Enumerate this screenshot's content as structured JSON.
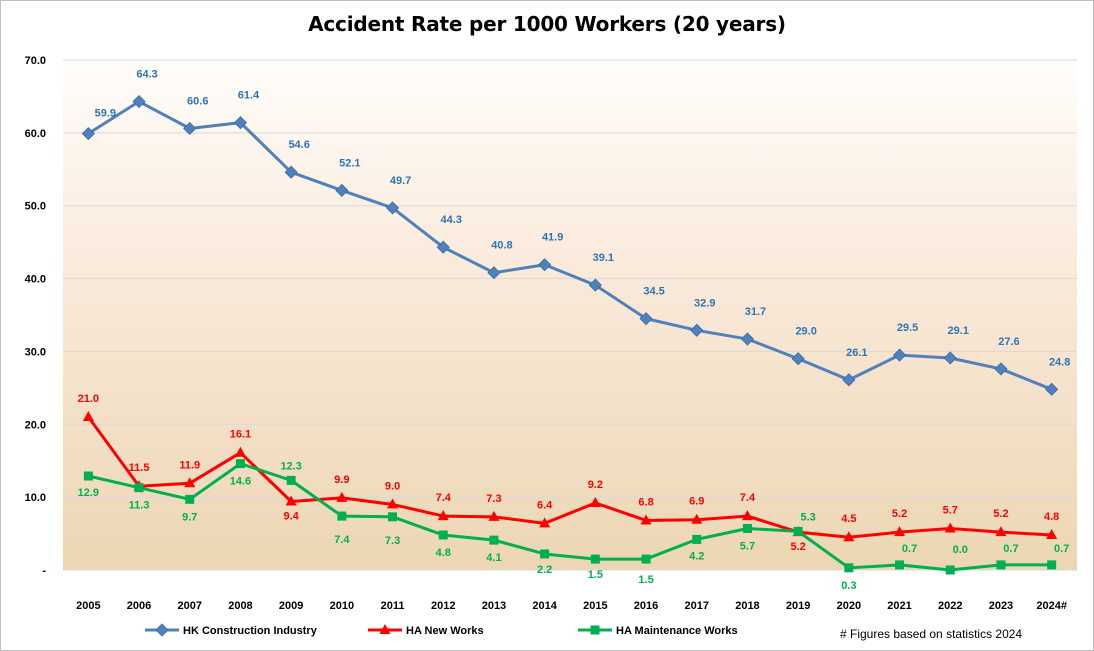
{
  "chart_data": {
    "type": "line",
    "title": "Accident Rate per 1000 Workers (20 years)",
    "categories": [
      "2005",
      "2006",
      "2007",
      "2008",
      "2009",
      "2010",
      "2011",
      "2012",
      "2013",
      "2014",
      "2015",
      "2016",
      "2017",
      "2018",
      "2019",
      "2020",
      "2021",
      "2022",
      "2023",
      "2024#"
    ],
    "y_tick_labels": [
      "-",
      "10.0",
      "20.0",
      "30.0",
      "40.0",
      "50.0",
      "60.0",
      "70.0"
    ],
    "ylim": [
      0,
      70
    ],
    "grid": true,
    "legend_position": "bottom",
    "series": [
      {
        "name": "HK Construction Industry",
        "color": "#4f81bd",
        "label_color": "#2e75b6",
        "marker": "diamond",
        "values": [
          59.9,
          64.3,
          60.6,
          61.4,
          54.6,
          52.1,
          49.7,
          44.3,
          40.8,
          41.9,
          39.1,
          34.5,
          32.9,
          31.7,
          29.0,
          26.1,
          29.5,
          29.1,
          27.6,
          24.8
        ],
        "labels": [
          "59.9",
          "64.3",
          "60.6",
          "61.4",
          "54.6",
          "52.1",
          "49.7",
          "44.3",
          "40.8",
          "41.9",
          "39.1",
          "34.5",
          "32.9",
          "31.7",
          "29.0",
          "26.1",
          "29.5",
          "29.1",
          "27.6",
          "24.8"
        ]
      },
      {
        "name": "HA New Works",
        "color": "#ff0000",
        "label_color": "#ff0000",
        "marker": "triangle",
        "values": [
          21.0,
          11.5,
          11.9,
          16.1,
          9.4,
          9.9,
          9.0,
          7.4,
          7.3,
          6.4,
          9.2,
          6.8,
          6.9,
          7.4,
          5.2,
          4.5,
          5.2,
          5.7,
          5.2,
          4.8
        ],
        "labels": [
          "21.0",
          "11.5",
          "11.9",
          "16.1",
          "9.4",
          "9.9",
          "9.0",
          "7.4",
          "7.3",
          "6.4",
          "9.2",
          "6.8",
          "6.9",
          "7.4",
          "5.2",
          "4.5",
          "5.2",
          "5.7",
          "5.2",
          "4.8"
        ]
      },
      {
        "name": "HA Maintenance Works",
        "color": "#00b050",
        "label_color": "#00b050",
        "marker": "square",
        "values": [
          12.9,
          11.3,
          9.7,
          14.6,
          12.3,
          7.4,
          7.3,
          4.8,
          4.1,
          2.2,
          1.5,
          1.5,
          4.2,
          5.7,
          5.3,
          0.3,
          0.7,
          0.0,
          0.7,
          0.7
        ],
        "labels": [
          "12.9",
          "11.3",
          "9.7",
          "14.6",
          "12.3",
          "7.4",
          "7.3",
          "4.8",
          "4.1",
          "2.2",
          "1.5",
          "1.5",
          "4.2",
          "5.7",
          "5.3",
          "0.3",
          "0.7",
          "0.0",
          "0.7",
          "0.7"
        ]
      }
    ],
    "footnote": "# Figures based on statistics 2024"
  }
}
